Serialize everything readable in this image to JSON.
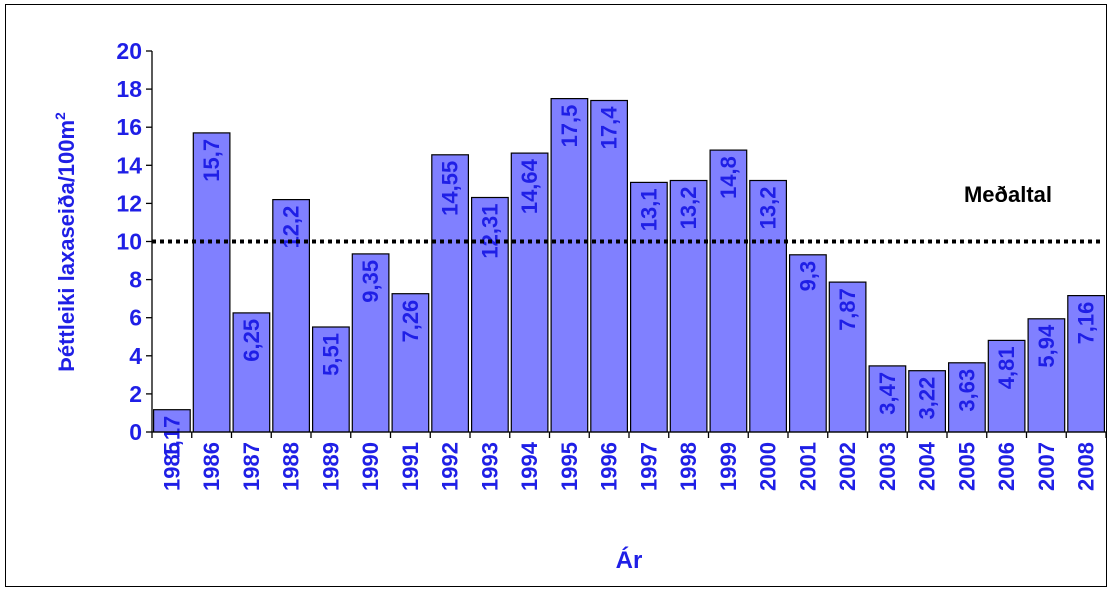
{
  "chart_data": {
    "type": "bar",
    "categories": [
      "1985",
      "1986",
      "1987",
      "1988",
      "1989",
      "1990",
      "1991",
      "1992",
      "1993",
      "1994",
      "1995",
      "1996",
      "1997",
      "1998",
      "1999",
      "2000",
      "2001",
      "2002",
      "2003",
      "2004",
      "2005",
      "2006",
      "2007",
      "2008"
    ],
    "values": [
      1.17,
      15.7,
      6.25,
      12.2,
      5.51,
      9.35,
      7.26,
      14.55,
      12.31,
      14.64,
      17.5,
      17.4,
      13.1,
      13.2,
      14.8,
      13.2,
      9.3,
      7.87,
      3.47,
      3.22,
      3.63,
      4.81,
      5.94,
      7.16
    ],
    "value_labels": [
      "1,17",
      "15,7",
      "6,25",
      "12,2",
      "5,51",
      "9,35",
      "7,26",
      "14,55",
      "12,31",
      "14,64",
      "17,5",
      "17,4",
      "13,1",
      "13,2",
      "14,8",
      "13,2",
      "9,3",
      "7,87",
      "3,47",
      "3,22",
      "3,63",
      "4,81",
      "5,94",
      "7,16"
    ],
    "ylabel_main": "Þéttleiki laxaseiða/100m",
    "ylabel_sup": "2",
    "xlabel": "Ár",
    "ylim": [
      0,
      20
    ],
    "yticks": [
      0,
      2,
      4,
      6,
      8,
      10,
      12,
      14,
      16,
      18,
      20
    ],
    "reference_line": {
      "value": 10,
      "label": "Meðaltal",
      "style": "dotted"
    },
    "grid": false,
    "legend": "none",
    "colors": {
      "bar_fill": "#8080ff",
      "bar_stroke": "#000000",
      "text": "#1f1fe6",
      "line": "#000000"
    }
  }
}
